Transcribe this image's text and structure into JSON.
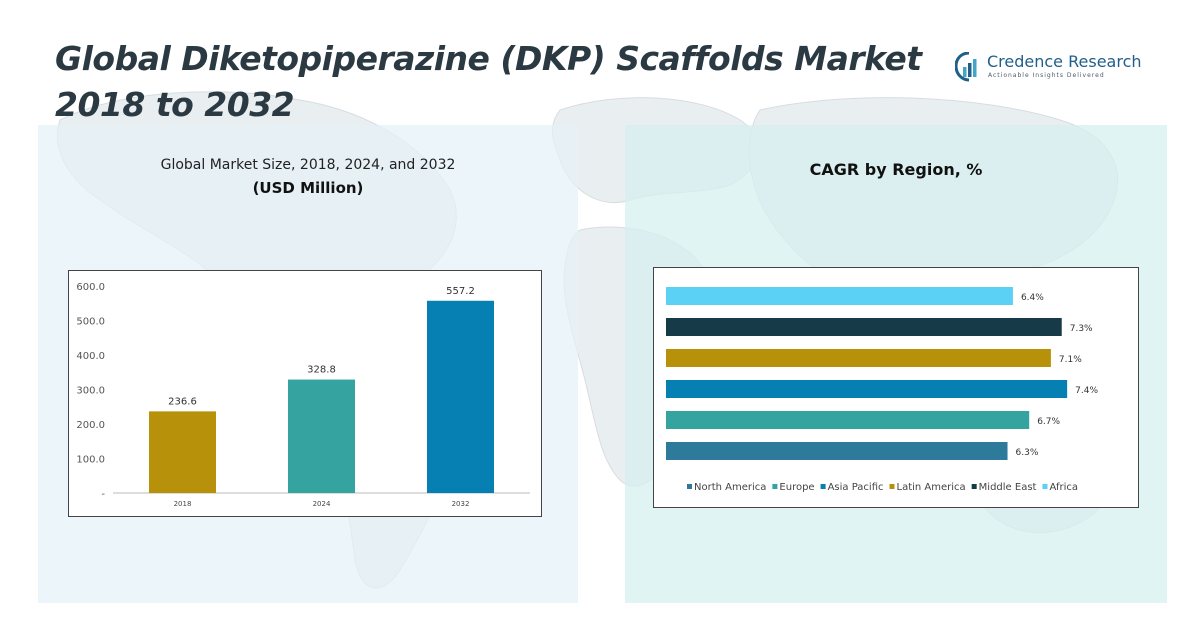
{
  "header": {
    "title_line1": "Global Diketopiperazine (DKP) Scaffolds Market",
    "title_line2": "2018 to 2032"
  },
  "logo": {
    "name": "Credence Research",
    "tagline": "Actionable Insights Delivered",
    "icon": "bar-chart-icon"
  },
  "colors": {
    "bar_2018": "#b8910a",
    "bar_2024": "#35a3a0",
    "bar_2032": "#0680b2",
    "north_america": "#2d7a9a",
    "europe": "#35a3a0",
    "asia_pacific": "#0680b2",
    "latin_america": "#b8910a",
    "middle_east": "#173a48",
    "africa": "#5ad1f5"
  },
  "chart_data": [
    {
      "type": "bar",
      "title": "Global Market Size, 2018, 2024, and 2032",
      "subtitle": "(USD Million)",
      "categories": [
        "2018",
        "2024",
        "2032"
      ],
      "values": [
        236.6,
        328.8,
        557.2
      ],
      "value_labels": [
        "236.6",
        "328.8",
        "557.2"
      ],
      "ylim": [
        0,
        600
      ],
      "yticks": [
        0,
        100,
        200,
        300,
        400,
        500,
        600
      ],
      "ytick_labels": [
        "-",
        "100.0",
        "200.0",
        "300.0",
        "400.0",
        "500.0",
        "600.0"
      ],
      "grid": false,
      "legend": "none"
    },
    {
      "type": "bar",
      "orientation": "horizontal",
      "title": "CAGR by Region, %",
      "series": [
        {
          "name": "North America",
          "value": 6.3,
          "label": "6.3%",
          "color_key": "north_america"
        },
        {
          "name": "Europe",
          "value": 6.7,
          "label": "6.7%",
          "color_key": "europe"
        },
        {
          "name": "Asia Pacific",
          "value": 7.4,
          "label": "7.4%",
          "color_key": "asia_pacific"
        },
        {
          "name": "Latin America",
          "value": 7.1,
          "label": "7.1%",
          "color_key": "latin_america"
        },
        {
          "name": "Middle East",
          "value": 7.3,
          "label": "7.3%",
          "color_key": "middle_east"
        },
        {
          "name": "Africa",
          "value": 6.4,
          "label": "6.4%",
          "color_key": "africa"
        }
      ],
      "legend": "bottom",
      "grid": false
    }
  ]
}
